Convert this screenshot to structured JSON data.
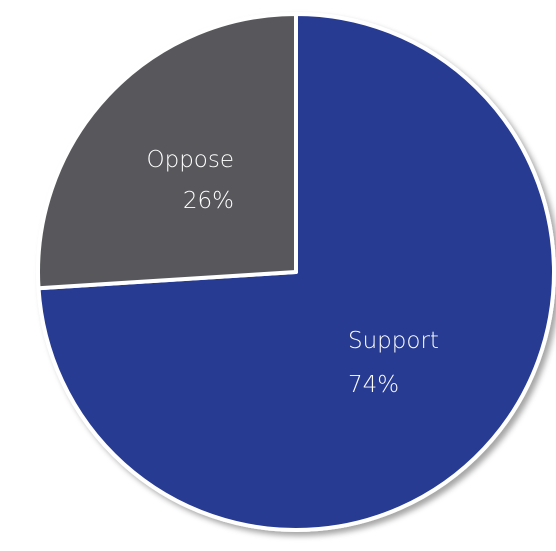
{
  "chart_data": {
    "type": "pie",
    "title": "",
    "slices": [
      {
        "label": "Support",
        "value": 74,
        "value_label": "74%",
        "color": "#283a91"
      },
      {
        "label": "Oppose",
        "value": 26,
        "value_label": "26%",
        "color": "#58595b"
      }
    ],
    "start_angle": "12 o'clock",
    "direction": "clockwise",
    "legend": "none",
    "labels": "inside slices"
  }
}
